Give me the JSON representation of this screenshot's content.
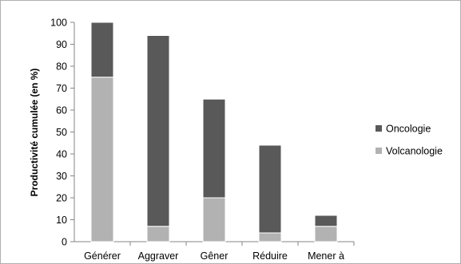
{
  "chart_data": {
    "type": "bar",
    "stacked": true,
    "categories": [
      "Générer",
      "Aggraver",
      "Gêner",
      "Réduire",
      "Mener à"
    ],
    "series": [
      {
        "name": "Volcanologie",
        "values": [
          75,
          7,
          20,
          4,
          7
        ],
        "color": "#b2b2b2"
      },
      {
        "name": "Oncologie",
        "values": [
          25,
          87,
          45,
          40,
          5
        ],
        "color": "#595959"
      }
    ],
    "title": "",
    "xlabel": "",
    "ylabel": "Productivité cumulée (en %)",
    "ylim": [
      0,
      100
    ],
    "yticks": [
      0,
      10,
      20,
      30,
      40,
      50,
      60,
      70,
      80,
      90,
      100
    ],
    "grid": false,
    "legend_position": "right"
  }
}
